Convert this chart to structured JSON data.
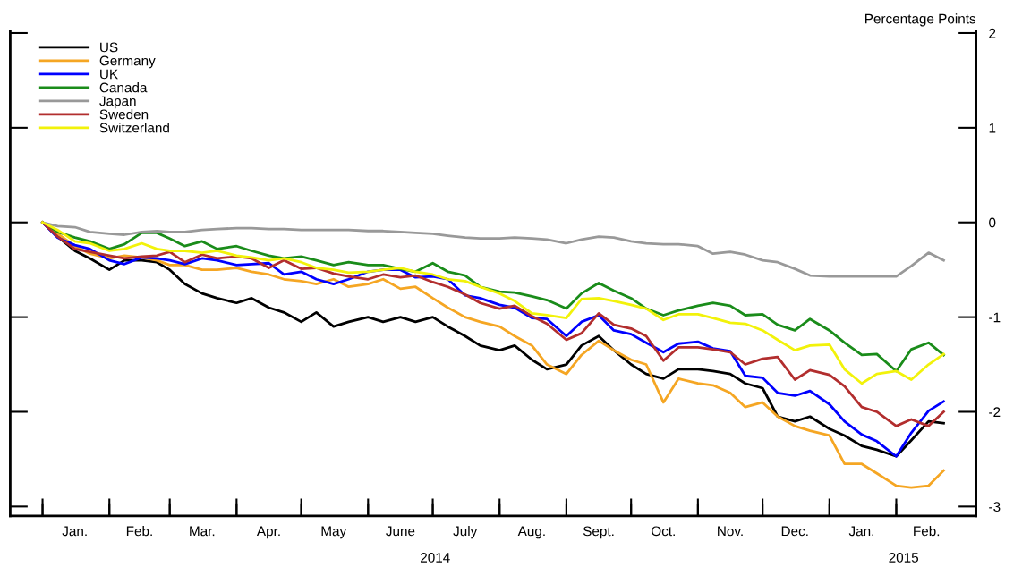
{
  "chart_data": {
    "type": "line",
    "ylabel": "Percentage Points",
    "x": [
      "2014-01-01",
      "2014-01-08",
      "2014-01-16",
      "2014-01-23",
      "2014-02-01",
      "2014-02-08",
      "2014-02-16",
      "2014-02-23",
      "2014-03-01",
      "2014-03-08",
      "2014-03-16",
      "2014-03-23",
      "2014-04-01",
      "2014-04-08",
      "2014-04-16",
      "2014-04-23",
      "2014-05-01",
      "2014-05-08",
      "2014-05-16",
      "2014-05-23",
      "2014-06-01",
      "2014-06-08",
      "2014-06-16",
      "2014-06-23",
      "2014-07-01",
      "2014-07-08",
      "2014-07-16",
      "2014-07-23",
      "2014-08-01",
      "2014-08-08",
      "2014-08-16",
      "2014-08-23",
      "2014-09-01",
      "2014-09-08",
      "2014-09-16",
      "2014-09-23",
      "2014-10-01",
      "2014-10-08",
      "2014-10-16",
      "2014-10-23",
      "2014-11-01",
      "2014-11-08",
      "2014-11-16",
      "2014-11-23",
      "2014-12-01",
      "2014-12-08",
      "2014-12-16",
      "2014-12-23",
      "2015-01-01",
      "2015-01-08",
      "2015-01-16",
      "2015-01-23",
      "2015-02-01",
      "2015-02-08",
      "2015-02-16",
      "2015-02-23"
    ],
    "series": [
      {
        "name": "US",
        "color": "#000000",
        "values": [
          0,
          -0.15,
          -0.3,
          -0.38,
          -0.5,
          -0.4,
          -0.4,
          -0.42,
          -0.5,
          -0.65,
          -0.75,
          -0.8,
          -0.85,
          -0.8,
          -0.9,
          -0.95,
          -1.05,
          -0.95,
          -1.1,
          -1.05,
          -1.0,
          -1.05,
          -1.0,
          -1.05,
          -1.0,
          -1.1,
          -1.2,
          -1.3,
          -1.35,
          -1.3,
          -1.45,
          -1.55,
          -1.5,
          -1.3,
          -1.2,
          -1.35,
          -1.5,
          -1.6,
          -1.65,
          -1.55,
          -1.55,
          -1.57,
          -1.6,
          -1.7,
          -1.75,
          -2.05,
          -2.1,
          -2.05,
          -2.18,
          -2.25,
          -2.36,
          -2.4,
          -2.47,
          -2.3,
          -2.1,
          -2.12
        ]
      },
      {
        "name": "Germany",
        "color": "#f5a623",
        "values": [
          0,
          -0.12,
          -0.25,
          -0.33,
          -0.38,
          -0.35,
          -0.37,
          -0.4,
          -0.45,
          -0.45,
          -0.5,
          -0.5,
          -0.48,
          -0.52,
          -0.55,
          -0.6,
          -0.62,
          -0.65,
          -0.6,
          -0.68,
          -0.65,
          -0.6,
          -0.7,
          -0.68,
          -0.8,
          -0.9,
          -1.0,
          -1.05,
          -1.1,
          -1.2,
          -1.3,
          -1.5,
          -1.6,
          -1.4,
          -1.25,
          -1.35,
          -1.45,
          -1.5,
          -1.9,
          -1.65,
          -1.7,
          -1.72,
          -1.8,
          -1.95,
          -1.9,
          -2.05,
          -2.15,
          -2.2,
          -2.25,
          -2.55,
          -2.55,
          -2.65,
          -2.78,
          -2.8,
          -2.78,
          -2.62
        ]
      },
      {
        "name": "UK",
        "color": "#0000ff",
        "values": [
          0,
          -0.16,
          -0.24,
          -0.28,
          -0.4,
          -0.44,
          -0.37,
          -0.38,
          -0.4,
          -0.44,
          -0.38,
          -0.4,
          -0.45,
          -0.44,
          -0.43,
          -0.55,
          -0.52,
          -0.6,
          -0.65,
          -0.6,
          -0.52,
          -0.5,
          -0.5,
          -0.58,
          -0.57,
          -0.6,
          -0.77,
          -0.8,
          -0.87,
          -0.9,
          -1.01,
          -1.02,
          -1.2,
          -1.05,
          -0.98,
          -1.14,
          -1.18,
          -1.27,
          -1.37,
          -1.28,
          -1.26,
          -1.33,
          -1.36,
          -1.62,
          -1.64,
          -1.8,
          -1.83,
          -1.78,
          -1.92,
          -2.1,
          -2.24,
          -2.31,
          -2.47,
          -2.22,
          -1.99,
          -1.89
        ]
      },
      {
        "name": "Canada",
        "color": "#1a8c1a",
        "values": [
          0,
          -0.1,
          -0.16,
          -0.2,
          -0.28,
          -0.23,
          -0.11,
          -0.11,
          -0.17,
          -0.25,
          -0.2,
          -0.28,
          -0.25,
          -0.3,
          -0.35,
          -0.38,
          -0.36,
          -0.4,
          -0.45,
          -0.42,
          -0.45,
          -0.45,
          -0.49,
          -0.52,
          -0.43,
          -0.52,
          -0.56,
          -0.68,
          -0.73,
          -0.74,
          -0.78,
          -0.82,
          -0.91,
          -0.75,
          -0.64,
          -0.72,
          -0.8,
          -0.91,
          -0.98,
          -0.93,
          -0.88,
          -0.85,
          -0.88,
          -0.98,
          -0.97,
          -1.08,
          -1.14,
          -1.02,
          -1.14,
          -1.27,
          -1.4,
          -1.39,
          -1.57,
          -1.34,
          -1.27,
          -1.4
        ]
      },
      {
        "name": "Japan",
        "color": "#999999",
        "values": [
          0,
          -0.04,
          -0.05,
          -0.1,
          -0.12,
          -0.13,
          -0.1,
          -0.09,
          -0.1,
          -0.1,
          -0.08,
          -0.07,
          -0.06,
          -0.06,
          -0.07,
          -0.07,
          -0.08,
          -0.08,
          -0.08,
          -0.08,
          -0.09,
          -0.09,
          -0.1,
          -0.11,
          -0.12,
          -0.14,
          -0.16,
          -0.17,
          -0.17,
          -0.16,
          -0.17,
          -0.18,
          -0.22,
          -0.18,
          -0.15,
          -0.16,
          -0.2,
          -0.22,
          -0.23,
          -0.23,
          -0.25,
          -0.33,
          -0.31,
          -0.34,
          -0.4,
          -0.42,
          -0.49,
          -0.56,
          -0.57,
          -0.57,
          -0.57,
          -0.57,
          -0.57,
          -0.46,
          -0.32,
          -0.4
        ]
      },
      {
        "name": "Sweden",
        "color": "#b22e2e",
        "values": [
          0,
          -0.15,
          -0.28,
          -0.31,
          -0.35,
          -0.38,
          -0.36,
          -0.35,
          -0.31,
          -0.42,
          -0.34,
          -0.38,
          -0.36,
          -0.38,
          -0.48,
          -0.4,
          -0.49,
          -0.48,
          -0.54,
          -0.57,
          -0.6,
          -0.55,
          -0.58,
          -0.56,
          -0.63,
          -0.68,
          -0.76,
          -0.85,
          -0.91,
          -0.88,
          -0.99,
          -1.07,
          -1.24,
          -1.17,
          -0.96,
          -1.08,
          -1.12,
          -1.2,
          -1.46,
          -1.32,
          -1.32,
          -1.34,
          -1.37,
          -1.5,
          -1.44,
          -1.42,
          -1.66,
          -1.56,
          -1.61,
          -1.73,
          -1.95,
          -2.0,
          -2.15,
          -2.08,
          -2.15,
          -2.0
        ]
      },
      {
        "name": "Switzerland",
        "color": "#f2f20a",
        "values": [
          0,
          -0.08,
          -0.2,
          -0.22,
          -0.3,
          -0.28,
          -0.22,
          -0.28,
          -0.3,
          -0.3,
          -0.32,
          -0.3,
          -0.35,
          -0.37,
          -0.4,
          -0.38,
          -0.42,
          -0.48,
          -0.5,
          -0.53,
          -0.52,
          -0.5,
          -0.48,
          -0.52,
          -0.55,
          -0.6,
          -0.62,
          -0.68,
          -0.75,
          -0.83,
          -0.96,
          -0.98,
          -1.01,
          -0.81,
          -0.8,
          -0.83,
          -0.87,
          -0.91,
          -1.03,
          -0.97,
          -0.97,
          -1.01,
          -1.06,
          -1.07,
          -1.14,
          -1.24,
          -1.35,
          -1.3,
          -1.29,
          -1.55,
          -1.7,
          -1.6,
          -1.57,
          -1.66,
          -1.5,
          -1.39
        ]
      }
    ],
    "xlim": [
      "2013-12-17",
      "2015-03-10"
    ],
    "xticks": [
      {
        "value": "2014-01-01",
        "label": null
      },
      {
        "value": "2014-02-01",
        "label": null
      },
      {
        "value": "2014-03-01",
        "label": null
      },
      {
        "value": "2014-04-01",
        "label": null
      },
      {
        "value": "2014-05-01",
        "label": null
      },
      {
        "value": "2014-06-01",
        "label": null
      },
      {
        "value": "2014-07-01",
        "label": null
      },
      {
        "value": "2014-08-01",
        "label": null
      },
      {
        "value": "2014-09-01",
        "label": null
      },
      {
        "value": "2014-10-01",
        "label": null
      },
      {
        "value": "2014-11-01",
        "label": null
      },
      {
        "value": "2014-12-01",
        "label": null
      },
      {
        "value": "2015-01-01",
        "label": null
      },
      {
        "value": "2015-02-01",
        "label": null
      },
      {
        "value": "2014-01-16",
        "label": "Jan."
      },
      {
        "value": "2014-02-15",
        "label": "Feb."
      },
      {
        "value": "2014-03-16",
        "label": "Mar."
      },
      {
        "value": "2014-04-16",
        "label": "Apr."
      },
      {
        "value": "2014-05-16",
        "label": "May"
      },
      {
        "value": "2014-06-16",
        "label": "June"
      },
      {
        "value": "2014-07-16",
        "label": "July"
      },
      {
        "value": "2014-08-16",
        "label": "Aug."
      },
      {
        "value": "2014-09-16",
        "label": "Sept."
      },
      {
        "value": "2014-10-16",
        "label": "Oct."
      },
      {
        "value": "2014-11-16",
        "label": "Nov."
      },
      {
        "value": "2014-12-16",
        "label": "Dec."
      },
      {
        "value": "2015-01-16",
        "label": "Jan."
      },
      {
        "value": "2015-02-15",
        "label": "Feb."
      }
    ],
    "annotations": [
      "2014",
      "2015"
    ],
    "ylim": [
      -3.1,
      2.02
    ],
    "yticks": [
      -3,
      -2,
      -1,
      0,
      1,
      2
    ],
    "legend": "top left",
    "grid": false,
    "line_style": "solid",
    "marker": "none"
  }
}
